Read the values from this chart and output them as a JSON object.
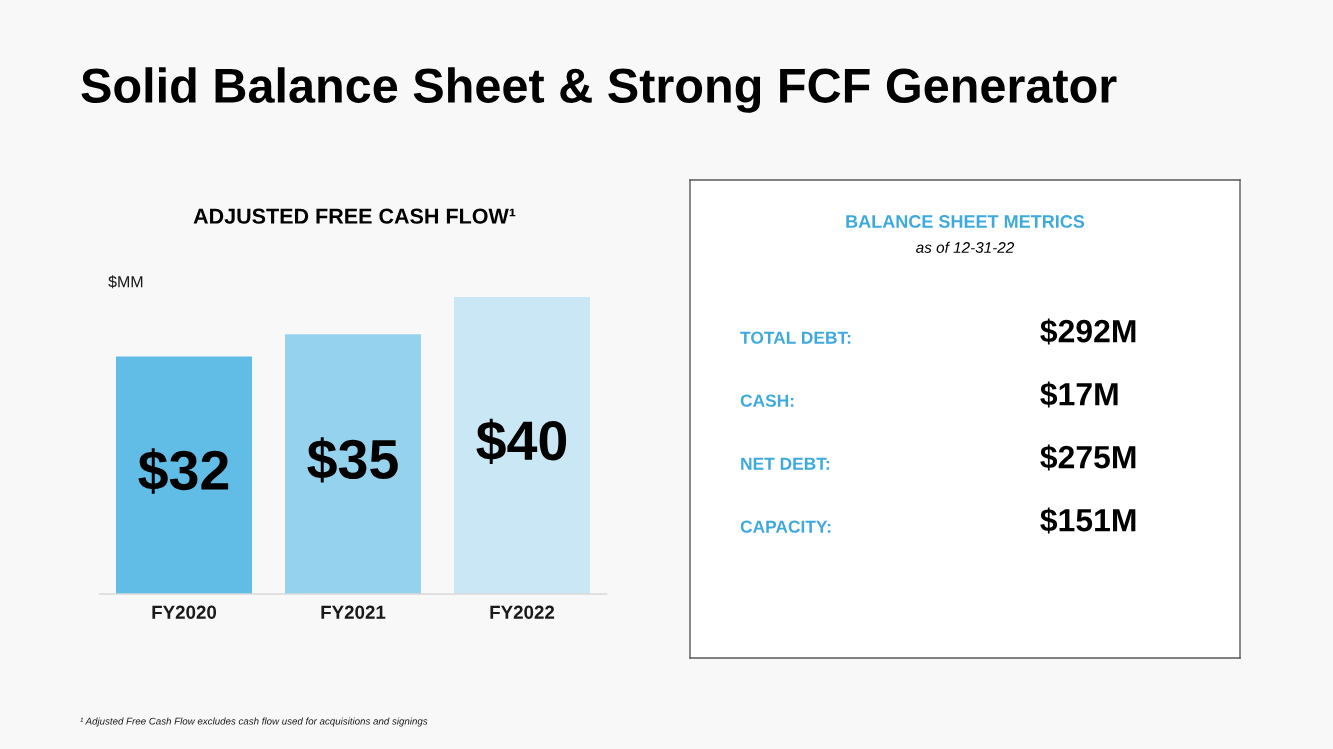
{
  "chart_data": [
    {
      "type": "bar",
      "title": "Solid Balance Sheet & Strong FCF Generator",
      "subtitle": "ADJUSTED FREE CASH FLOW¹",
      "ylabel": "$MM",
      "categories": [
        "FY2020",
        "FY2021",
        "FY2022"
      ],
      "values": [
        32,
        35,
        40
      ],
      "colors": [
        "#62bde6",
        "#95d2ee",
        "#c9e7f4"
      ],
      "value_labels": [
        "$32",
        "$35",
        "$40"
      ],
      "ylim": [
        0,
        40
      ],
      "tick_labels": "x",
      "annotations": [
        "¹ Adjusted Free Cash Flow excludes cash flow used for acquisitions and signings"
      ]
    },
    {
      "type": "other",
      "title": "BALANCE SHEET METRICS",
      "subtitle": "as of 12-31-22",
      "color": "#3ea9dc",
      "annotations": [
        "TOTAL DEBT:",
        "$292M",
        "CASH:",
        "$17M",
        "NET DEBT:",
        "$275M",
        "CAPACITY:",
        "$151M"
      ]
    }
  ]
}
